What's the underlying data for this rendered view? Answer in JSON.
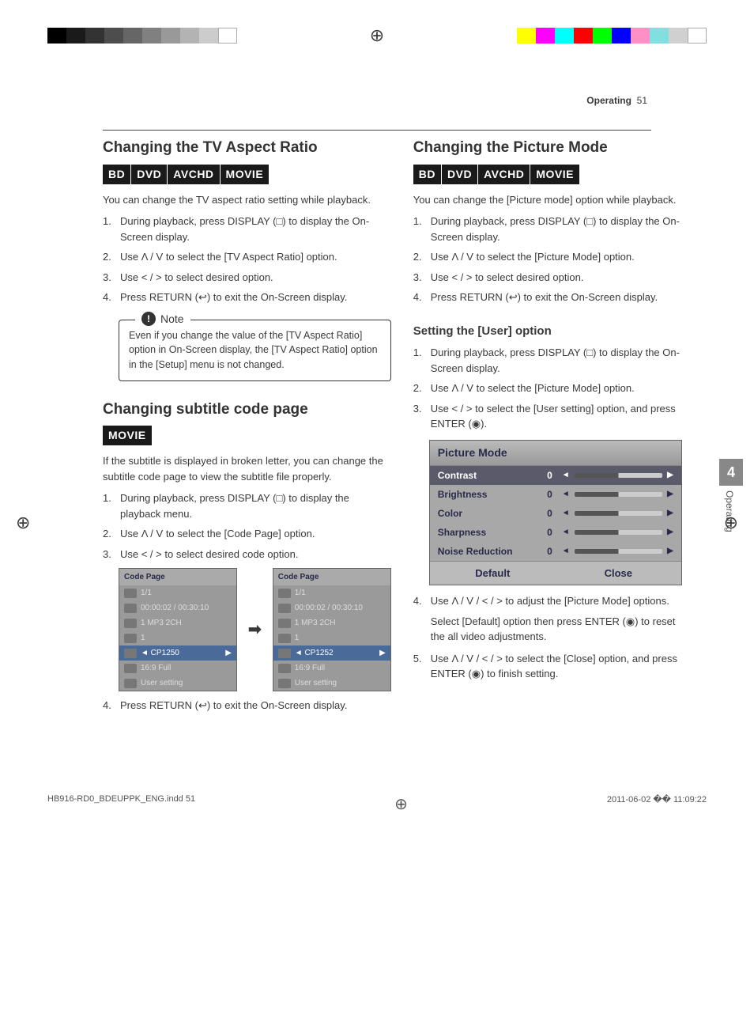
{
  "page": {
    "section": "Operating",
    "number": "51"
  },
  "reg": {
    "grays": [
      "#000",
      "#1a1a1a",
      "#333",
      "#4d4d4d",
      "#666",
      "#808080",
      "#999",
      "#b3b3b3",
      "#ccc",
      "#fff"
    ],
    "colors": [
      "#ffff00",
      "#ff00ff",
      "#00ffff",
      "#ff0000",
      "#00ff00",
      "#0000ff",
      "#ff8fc5",
      "#80e0e0",
      "#d0d0d0",
      "#fff"
    ]
  },
  "left": {
    "s1": {
      "title": "Changing the TV Aspect Ratio",
      "badges": [
        "BD",
        "DVD",
        "AVCHD",
        "MOVIE"
      ],
      "intro": "You can change the TV aspect ratio setting while playback.",
      "steps": [
        "During playback, press DISPLAY (□) to display the On-Screen display.",
        "Use Λ / V to select the [TV Aspect Ratio] option.",
        "Use < / > to select desired option.",
        "Press RETURN (↩) to exit the On-Screen display."
      ],
      "note_label": "Note",
      "note": "Even if you change the value of the [TV Aspect Ratio] option in On-Screen display, the [TV Aspect Ratio] option in the [Setup] menu is not changed."
    },
    "s2": {
      "title": "Changing subtitle code page",
      "badges": [
        "MOVIE"
      ],
      "intro": "If the subtitle is displayed in broken letter, you can change the subtitle code page to view the subtitle file properly.",
      "steps": [
        "During playback, press DISPLAY (□) to display the playback menu.",
        "Use Λ / V to select the [Code Page] option.",
        "Use < / > to select desired code option."
      ],
      "step4": "Press RETURN (↩) to exit the On-Screen display."
    },
    "codepage": {
      "title": "Code Page",
      "rows": [
        "1/1",
        "00:00:02 / 00:30:10",
        "1 MP3 2CH",
        "1"
      ],
      "sel_a": "◄ CP1250",
      "sel_b": "◄ CP1252",
      "tail": [
        "16:9 Full",
        "User setting"
      ]
    }
  },
  "right": {
    "s1": {
      "title": "Changing the Picture Mode",
      "badges": [
        "BD",
        "DVD",
        "AVCHD",
        "MOVIE"
      ],
      "intro": "You can change the [Picture mode] option while playback.",
      "steps": [
        "During playback, press DISPLAY (□) to display the On-Screen display.",
        "Use Λ / V to select the [Picture Mode] option.",
        "Use < / > to select desired option.",
        "Press RETURN (↩) to exit the On-Screen display."
      ]
    },
    "s2": {
      "title": "Setting the [User] option",
      "steps": [
        "During playback, press DISPLAY (□) to display the On-Screen display.",
        "Use Λ / V to select the [Picture Mode] option.",
        "Use < / > to select the [User setting] option, and press ENTER (◉)."
      ],
      "step4": "Use Λ / V / < / > to adjust the [Picture Mode] options.",
      "step4b": "Select [Default] option then press ENTER (◉) to reset the all video adjustments.",
      "step5": "Use Λ / V / < / > to select the [Close] option, and press ENTER (◉) to finish setting."
    },
    "pm": {
      "title": "Picture Mode",
      "rows": [
        {
          "label": "Contrast",
          "val": "0",
          "sel": true
        },
        {
          "label": "Brightness",
          "val": "0"
        },
        {
          "label": "Color",
          "val": "0"
        },
        {
          "label": "Sharpness",
          "val": "0"
        },
        {
          "label": "Noise Reduction",
          "val": "0"
        }
      ],
      "footer": [
        "Default",
        "Close"
      ]
    }
  },
  "sidetab": {
    "num": "4",
    "label": "Operating"
  },
  "footer": {
    "file": "HB916-RD0_BDEUPPK_ENG.indd   51",
    "time": "2011-06-02   �� 11:09:22"
  }
}
